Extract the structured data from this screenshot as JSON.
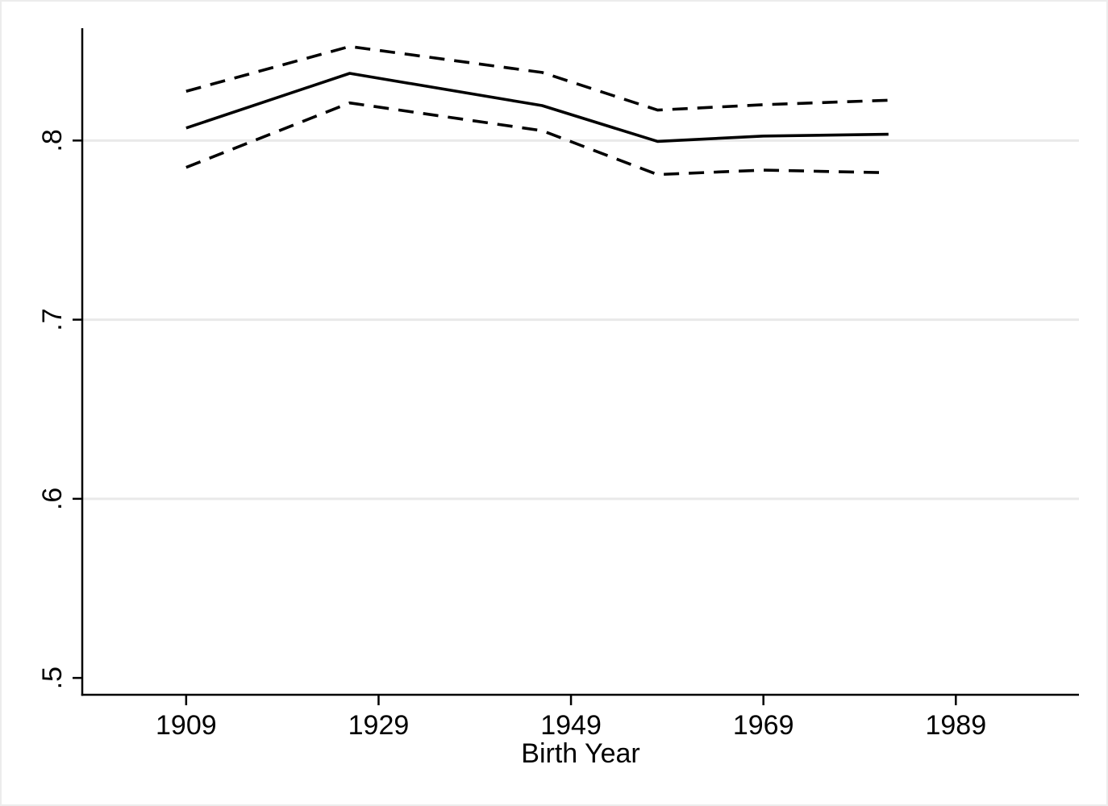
{
  "window": {
    "background": "#ffffff",
    "border_color": "#ececec"
  },
  "chart_data": {
    "type": "line",
    "title": "",
    "xlabel": "Birth Year",
    "ylabel": "",
    "x": [
      1909,
      1926,
      1946,
      1958,
      1969,
      1982
    ],
    "series": [
      {
        "name": "main-line",
        "line_style": "solid",
        "color": "#000000",
        "values": [
          0.807,
          0.8375,
          0.8195,
          0.7995,
          0.8025,
          0.8035
        ]
      },
      {
        "name": "upper-dashed-band",
        "line_style": "dashed",
        "color": "#000000",
        "values": [
          0.8275,
          0.8525,
          0.838,
          0.817,
          0.82,
          0.8225
        ]
      },
      {
        "name": "lower-dashed-band",
        "line_style": "dashed",
        "color": "#000000",
        "values": [
          0.785,
          0.821,
          0.8055,
          0.781,
          0.7835,
          0.782
        ]
      }
    ],
    "xticks": {
      "values": [
        1909,
        1929,
        1949,
        1969,
        1989
      ],
      "labels": [
        "1909",
        "1929",
        "1949",
        "1969",
        "1989"
      ]
    },
    "yticks": {
      "values": [
        0.5,
        0.6,
        0.7,
        0.8
      ],
      "labels": [
        ".5",
        ".6",
        ".7",
        ".8"
      ]
    },
    "grid_y_values": [
      0.6,
      0.7,
      0.8
    ],
    "xlim": [
      1898.2,
      2001.8
    ],
    "ylim": [
      0.4906,
      0.8627
    ],
    "grid": "horizontal",
    "legend_position": "none",
    "colors": {
      "line": "#000000",
      "grid": "#e9e9e9",
      "axis": "#000000",
      "background": "#ffffff"
    }
  }
}
